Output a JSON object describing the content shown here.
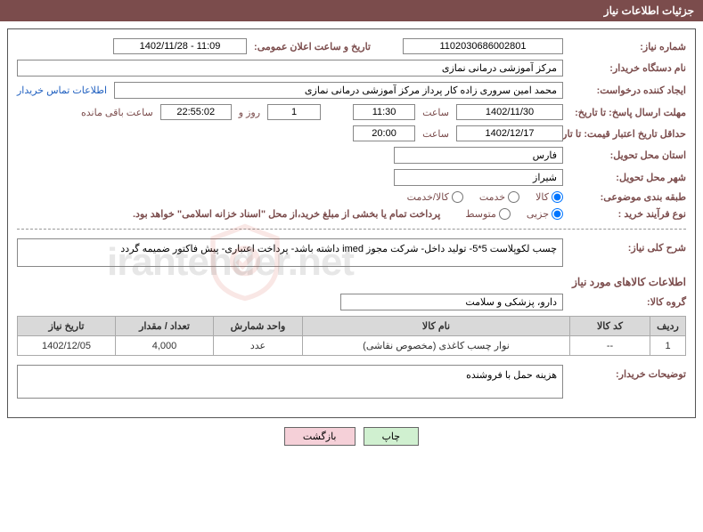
{
  "header": {
    "title": "جزئیات اطلاعات نیاز"
  },
  "need_number": {
    "label": "شماره نیاز:",
    "value": "1102030686002801"
  },
  "announce_datetime": {
    "label": "تاریخ و ساعت اعلان عمومی:",
    "value": "1402/11/28 - 11:09"
  },
  "buyer_org": {
    "label": "نام دستگاه خریدار:",
    "value": "مرکز آموزشی درمانی نمازی"
  },
  "requester": {
    "label": "ایجاد کننده درخواست:",
    "value": "محمد امین سروری زاده کار پرداز مرکز آموزشی درمانی نمازی",
    "contact_link": "اطلاعات تماس خریدار"
  },
  "deadline": {
    "label": "مهلت ارسال پاسخ: تا تاریخ:",
    "date": "1402/11/30",
    "time_label": "ساعت",
    "time": "11:30",
    "days": "1",
    "days_suffix": "روز و",
    "remaining_time": "22:55:02",
    "remaining_suffix": "ساعت باقی مانده"
  },
  "validity": {
    "label": "حداقل تاریخ اعتبار قیمت: تا تاریخ:",
    "date": "1402/12/17",
    "time_label": "ساعت",
    "time": "20:00"
  },
  "delivery_province": {
    "label": "استان محل تحویل:",
    "value": "فارس"
  },
  "delivery_city": {
    "label": "شهر محل تحویل:",
    "value": "شیراز"
  },
  "subject_class": {
    "label": "طبقه بندی موضوعی:",
    "options": [
      {
        "label": "کالا",
        "checked": true
      },
      {
        "label": "خدمت",
        "checked": false
      },
      {
        "label": "کالا/خدمت",
        "checked": false
      }
    ]
  },
  "purchase_type": {
    "label": "نوع فرآیند خرید :",
    "options": [
      {
        "label": "جزیی",
        "checked": true
      },
      {
        "label": "متوسط",
        "checked": false
      }
    ],
    "note": "پرداخت تمام یا بخشی از مبلغ خرید،از محل \"اسناد خزانه اسلامی\" خواهد بود."
  },
  "general_desc": {
    "label": "شرح کلی نیاز:",
    "text": "چسب لکوپلاست 5*5- تولید داخل- شرکت مجوز imed داشته باشد- پرداخت اعتباری- پیش فاکتور ضمیمه گردد"
  },
  "items_header": "اطلاعات کالاهای مورد نیاز",
  "item_group": {
    "label": "گروه کالا:",
    "value": "دارو، پزشکی و سلامت"
  },
  "table": {
    "columns": [
      "ردیف",
      "کد کالا",
      "نام کالا",
      "واحد شمارش",
      "تعداد / مقدار",
      "تاریخ نیاز"
    ],
    "rows": [
      [
        "1",
        "--",
        "نوار چسب کاغذی (مخصوص نقاشی)",
        "عدد",
        "4,000",
        "1402/12/05"
      ]
    ]
  },
  "buyer_notes": {
    "label": "توضیحات خریدار:",
    "text": "هزینه حمل با فروشنده"
  },
  "buttons": {
    "print": "چاپ",
    "back": "بازگشت"
  },
  "watermark": "irantender.net",
  "colors": {
    "header_bg": "#7b4c4c",
    "label": "#7b4c4c",
    "link": "#2060c0"
  },
  "col_widths": [
    "40px",
    "90px",
    "auto",
    "100px",
    "110px",
    "110px"
  ]
}
